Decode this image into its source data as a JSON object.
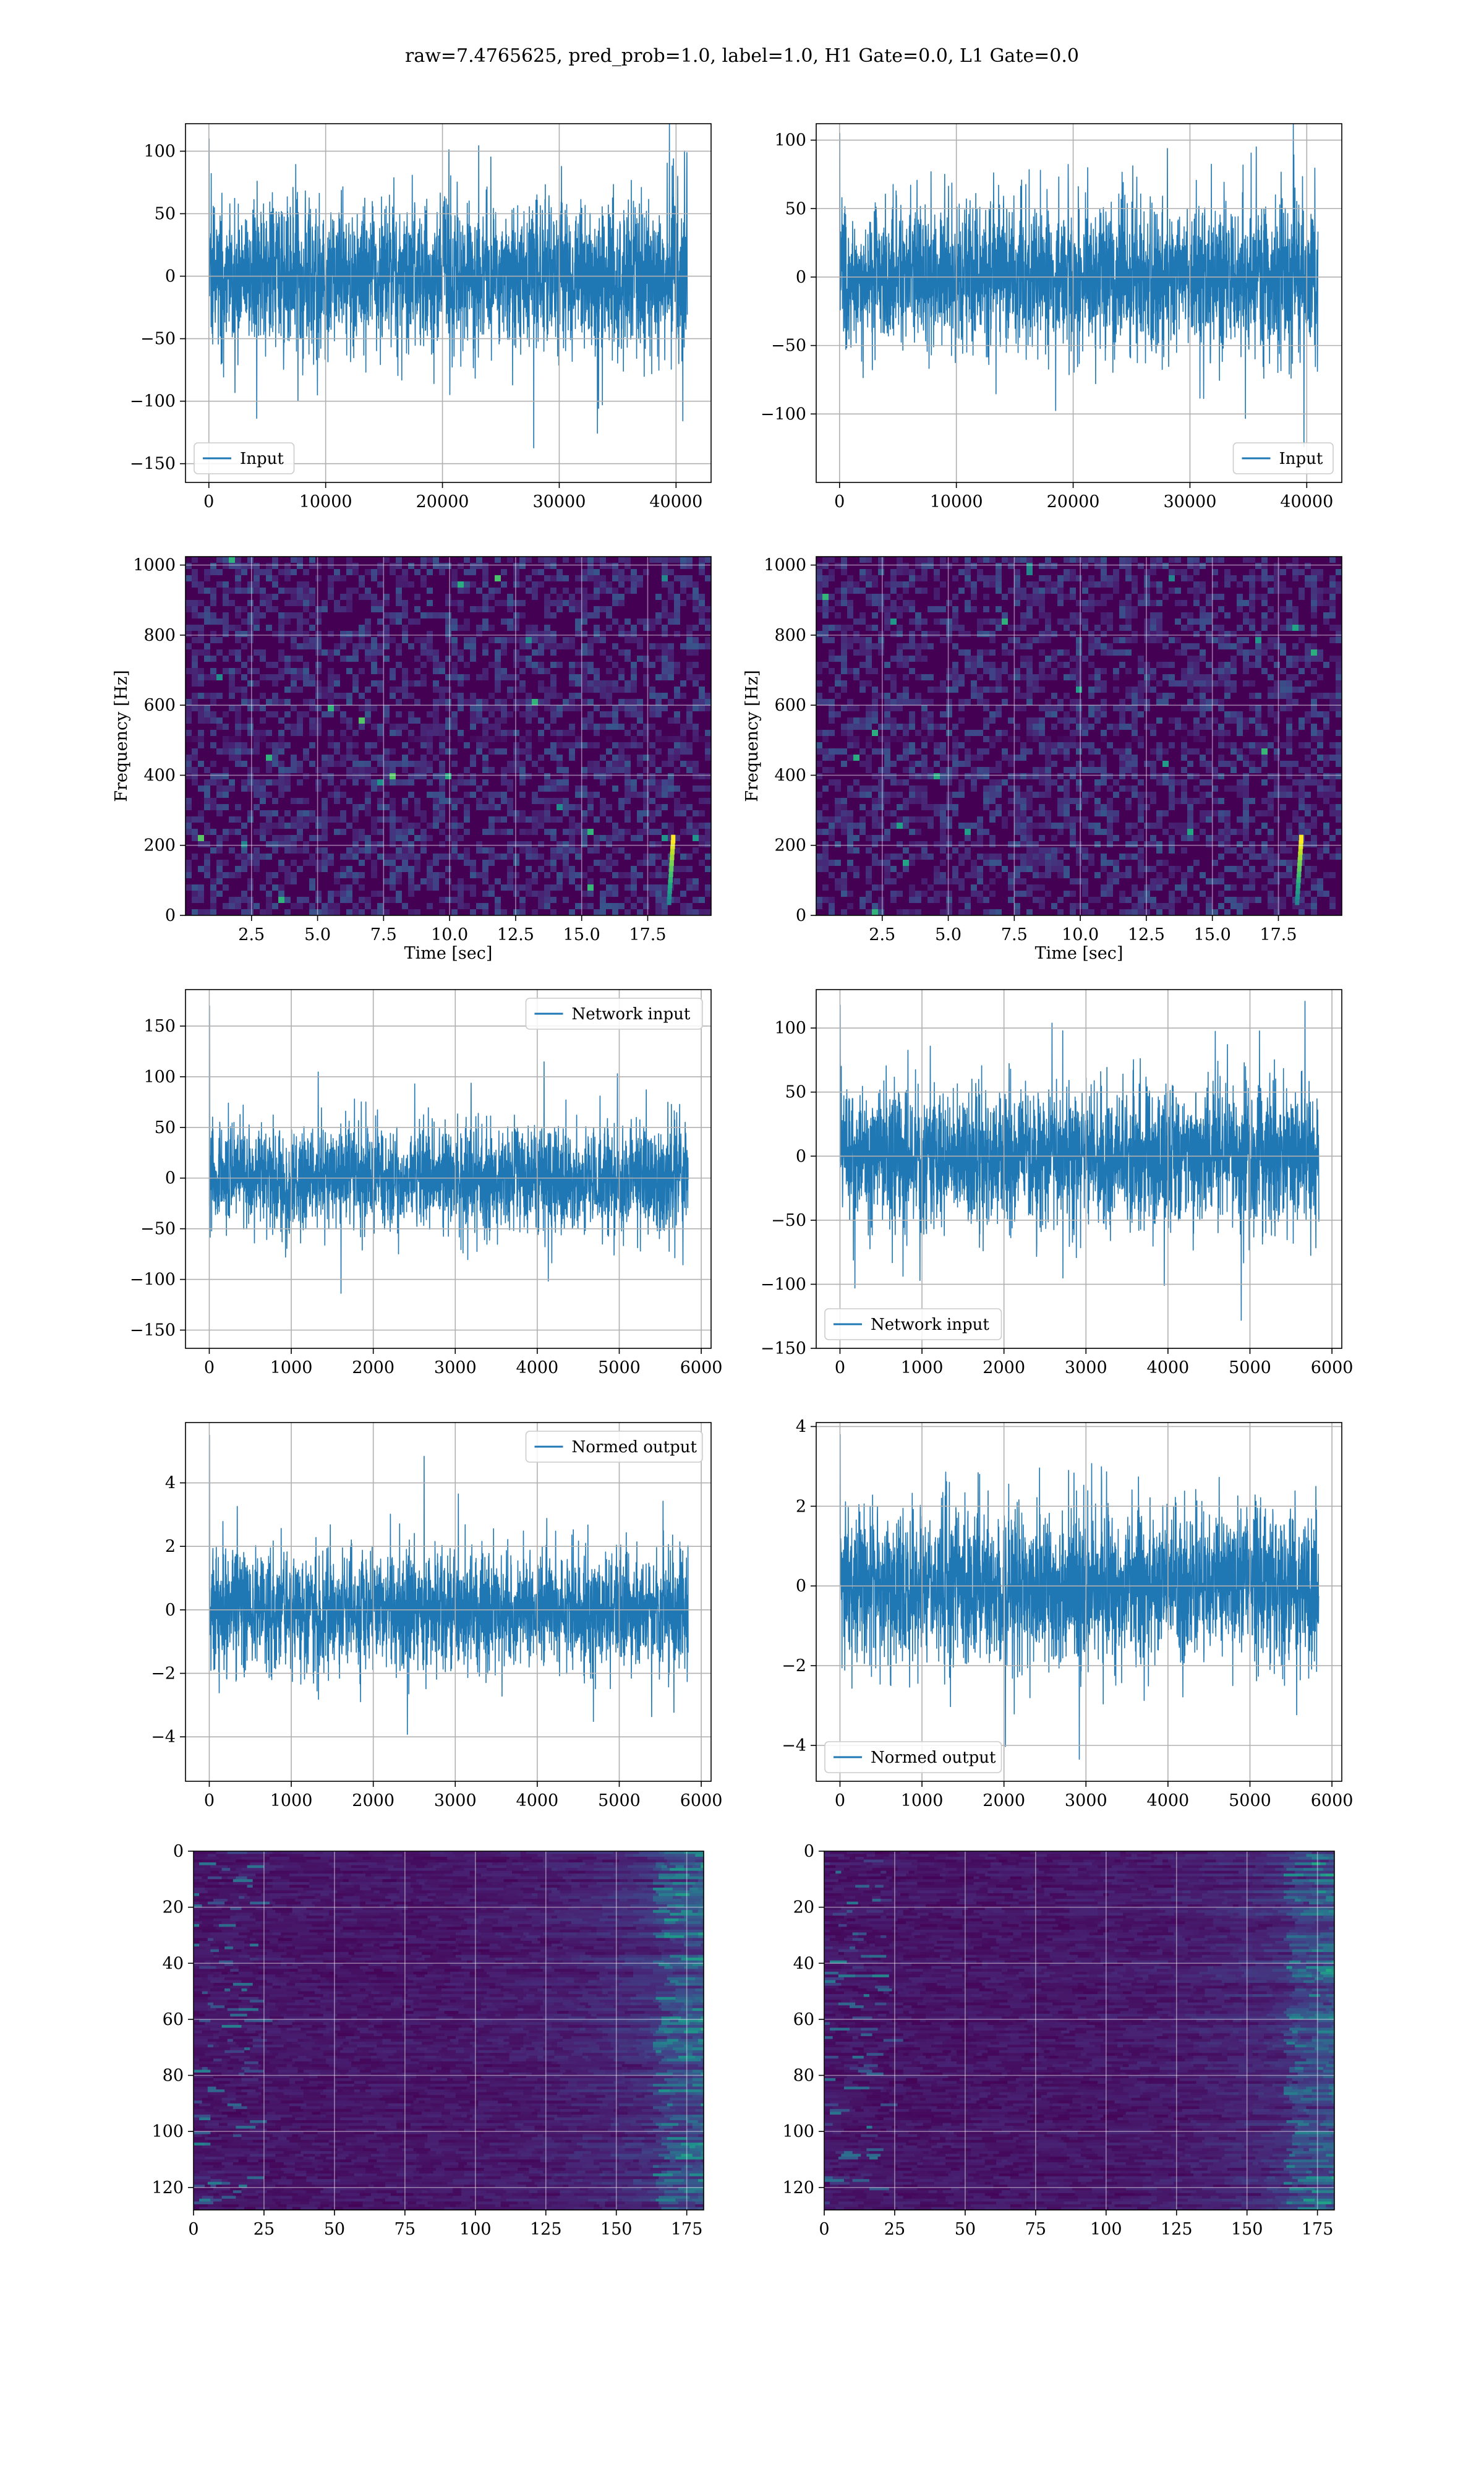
{
  "figure": {
    "title": "raw=7.4765625, pred_prob=1.0, label=1.0, H1 Gate=0.0, L1 Gate=0.0"
  },
  "colors": {
    "line": "#1f77b4",
    "grid": "#b0b0b0",
    "viridis_low": "#440154",
    "viridis_mid": "#21918c",
    "viridis_high": "#fde725"
  },
  "chart_data": [
    {
      "id": "input-h1",
      "type": "line",
      "panel": "row1-left",
      "series": [
        {
          "name": "Input",
          "n": 40960,
          "spread": 28,
          "peak": 110
        }
      ],
      "xlim": [
        -2000,
        43000
      ],
      "ylim": [
        -165,
        122
      ],
      "xticks": [
        0,
        10000,
        20000,
        30000,
        40000
      ],
      "xtick_labels": [
        "0",
        "10000",
        "20000",
        "30000",
        "40000"
      ],
      "yticks": [
        -150,
        -100,
        -50,
        0,
        50,
        100
      ],
      "ytick_labels": [
        "−150",
        "−100",
        "−50",
        "0",
        "50",
        "100"
      ],
      "xlabel": "",
      "ylabel": "",
      "legend": "lower-left",
      "grid": true
    },
    {
      "id": "input-l1",
      "type": "line",
      "panel": "row1-right",
      "series": [
        {
          "name": "Input",
          "n": 40960,
          "spread": 26,
          "peak": 105
        }
      ],
      "xlim": [
        -2000,
        43000
      ],
      "ylim": [
        -150,
        112
      ],
      "xticks": [
        0,
        10000,
        20000,
        30000,
        40000
      ],
      "xtick_labels": [
        "0",
        "10000",
        "20000",
        "30000",
        "40000"
      ],
      "yticks": [
        -100,
        -50,
        0,
        50,
        100
      ],
      "ytick_labels": [
        "−100",
        "−50",
        "0",
        "50",
        "100"
      ],
      "xlabel": "",
      "ylabel": "",
      "legend": "lower-right",
      "grid": true
    },
    {
      "id": "spectrogram-h1",
      "type": "heatmap",
      "panel": "row2-left",
      "xlim": [
        0,
        19.9
      ],
      "ylim": [
        0,
        1024
      ],
      "xticks": [
        2.5,
        5.0,
        7.5,
        10.0,
        12.5,
        15.0,
        17.5
      ],
      "xtick_labels": [
        "2.5",
        "5.0",
        "7.5",
        "10.0",
        "12.5",
        "15.0",
        "17.5"
      ],
      "yticks": [
        0,
        200,
        400,
        600,
        800,
        1000
      ],
      "ytick_labels": [
        "0",
        "200",
        "400",
        "600",
        "800",
        "1000"
      ],
      "xlabel": "Time [sec]",
      "ylabel": "Frequency [Hz]",
      "grid": true,
      "colormap": "viridis",
      "chirp_time": 18.3
    },
    {
      "id": "spectrogram-l1",
      "type": "heatmap",
      "panel": "row2-right",
      "xlim": [
        0,
        19.9
      ],
      "ylim": [
        0,
        1024
      ],
      "xticks": [
        2.5,
        5.0,
        7.5,
        10.0,
        12.5,
        15.0,
        17.5
      ],
      "xtick_labels": [
        "2.5",
        "5.0",
        "7.5",
        "10.0",
        "12.5",
        "15.0",
        "17.5"
      ],
      "yticks": [
        0,
        200,
        400,
        600,
        800,
        1000
      ],
      "ytick_labels": [
        "0",
        "200",
        "400",
        "600",
        "800",
        "1000"
      ],
      "xlabel": "Time [sec]",
      "ylabel": "Frequency [Hz]",
      "grid": true,
      "colormap": "viridis",
      "chirp_time": 18.2
    },
    {
      "id": "network-input-h1",
      "type": "line",
      "panel": "row3-left",
      "series": [
        {
          "name": "Network input",
          "n": 5840,
          "spread": 25,
          "peak": 170
        }
      ],
      "xlim": [
        -290,
        6120
      ],
      "ylim": [
        -168,
        186
      ],
      "xticks": [
        0,
        1000,
        2000,
        3000,
        4000,
        5000,
        6000
      ],
      "xtick_labels": [
        "0",
        "1000",
        "2000",
        "3000",
        "4000",
        "5000",
        "6000"
      ],
      "yticks": [
        -150,
        -100,
        -50,
        0,
        50,
        100,
        150
      ],
      "ytick_labels": [
        "−150",
        "−100",
        "−50",
        "0",
        "50",
        "100",
        "150"
      ],
      "xlabel": "",
      "ylabel": "",
      "legend": "upper-right",
      "grid": true
    },
    {
      "id": "network-input-l1",
      "type": "line",
      "panel": "row3-right",
      "series": [
        {
          "name": "Network input",
          "n": 5840,
          "spread": 26,
          "peak": 118
        }
      ],
      "xlim": [
        -290,
        6120
      ],
      "ylim": [
        -150,
        130
      ],
      "xticks": [
        0,
        1000,
        2000,
        3000,
        4000,
        5000,
        6000
      ],
      "xtick_labels": [
        "0",
        "1000",
        "2000",
        "3000",
        "4000",
        "5000",
        "6000"
      ],
      "yticks": [
        -150,
        -100,
        -50,
        0,
        50,
        100
      ],
      "ytick_labels": [
        "−150",
        "−100",
        "−50",
        "0",
        "50",
        "100"
      ],
      "xlabel": "",
      "ylabel": "",
      "legend": "lower-left",
      "grid": true
    },
    {
      "id": "normed-output-h1",
      "type": "line",
      "panel": "row4-left",
      "series": [
        {
          "name": "Normed output",
          "n": 5840,
          "spread": 0.9,
          "peak": 5.5
        }
      ],
      "xlim": [
        -290,
        6120
      ],
      "ylim": [
        -5.4,
        5.9
      ],
      "xticks": [
        0,
        1000,
        2000,
        3000,
        4000,
        5000,
        6000
      ],
      "xtick_labels": [
        "0",
        "1000",
        "2000",
        "3000",
        "4000",
        "5000",
        "6000"
      ],
      "yticks": [
        -4,
        -2,
        0,
        2,
        4
      ],
      "ytick_labels": [
        "−4",
        "−2",
        "0",
        "2",
        "4"
      ],
      "xlabel": "",
      "ylabel": "",
      "legend": "upper-right",
      "grid": true
    },
    {
      "id": "normed-output-l1",
      "type": "line",
      "panel": "row4-right",
      "series": [
        {
          "name": "Normed output",
          "n": 5840,
          "spread": 0.95,
          "peak": 3.8
        }
      ],
      "xlim": [
        -290,
        6120
      ],
      "ylim": [
        -4.9,
        4.1
      ],
      "xticks": [
        0,
        1000,
        2000,
        3000,
        4000,
        5000,
        6000
      ],
      "xtick_labels": [
        "0",
        "1000",
        "2000",
        "3000",
        "4000",
        "5000",
        "6000"
      ],
      "yticks": [
        -4,
        -2,
        0,
        2,
        4
      ],
      "ytick_labels": [
        "−4",
        "−2",
        "0",
        "2",
        "4"
      ],
      "xlabel": "",
      "ylabel": "",
      "legend": "lower-left",
      "grid": true
    },
    {
      "id": "feature-map-h1",
      "type": "heatmap",
      "panel": "row5-left",
      "xlim": [
        0,
        181
      ],
      "ylim": [
        128,
        0
      ],
      "rows": 128,
      "cols": 181,
      "xticks": [
        0,
        25,
        50,
        75,
        100,
        125,
        150,
        175
      ],
      "xtick_labels": [
        "0",
        "25",
        "50",
        "75",
        "100",
        "125",
        "150",
        "175"
      ],
      "yticks": [
        0,
        20,
        40,
        60,
        80,
        100,
        120
      ],
      "ytick_labels": [
        "0",
        "20",
        "40",
        "60",
        "80",
        "100",
        "120"
      ],
      "xlabel": "",
      "ylabel": "",
      "grid": true,
      "colormap": "viridis"
    },
    {
      "id": "feature-map-l1",
      "type": "heatmap",
      "panel": "row5-right",
      "xlim": [
        0,
        181
      ],
      "ylim": [
        128,
        0
      ],
      "rows": 128,
      "cols": 181,
      "xticks": [
        0,
        25,
        50,
        75,
        100,
        125,
        150,
        175
      ],
      "xtick_labels": [
        "0",
        "25",
        "50",
        "75",
        "100",
        "125",
        "150",
        "175"
      ],
      "yticks": [
        0,
        20,
        40,
        60,
        80,
        100,
        120
      ],
      "ytick_labels": [
        "0",
        "20",
        "40",
        "60",
        "80",
        "100",
        "120"
      ],
      "xlabel": "",
      "ylabel": "",
      "grid": true,
      "colormap": "viridis"
    }
  ]
}
